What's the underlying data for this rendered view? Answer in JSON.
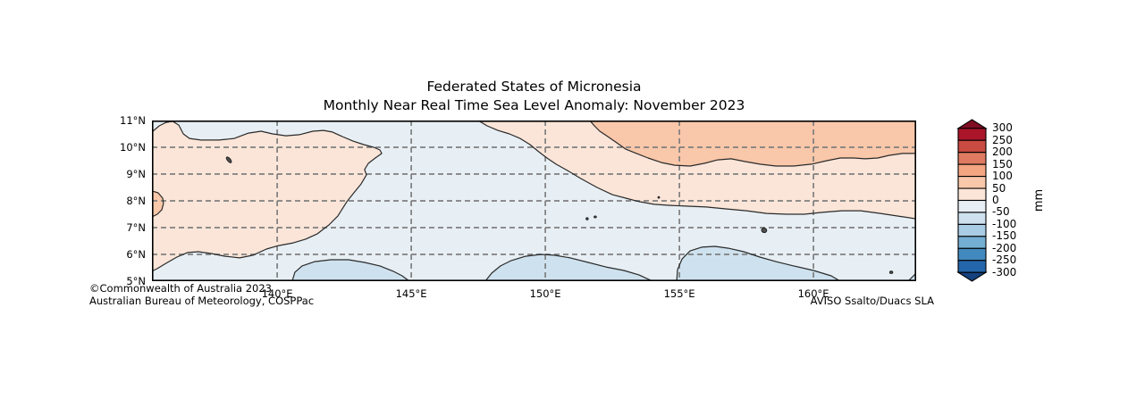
{
  "title": {
    "line1": "Federated States of Micronesia",
    "line2": "Monthly Near Real Time Sea Level Anomaly: November 2023"
  },
  "footer": {
    "copyright": "©Commonwealth of Australia 2023",
    "agency": "Australian Bureau of Meteorology, COSPPac",
    "source": "AVISO Ssalto/Duacs SLA"
  },
  "chart_data": {
    "type": "heatmap",
    "subtype": "filled-contour-sea-level-anomaly-map",
    "title": "Federated States of Micronesia — Monthly Near Real Time Sea Level Anomaly: November 2023",
    "units": "mm",
    "x_axis": {
      "range": [
        135.33,
        163.83
      ],
      "tick_values": [
        140,
        145,
        150,
        155,
        160
      ],
      "tick_labels": [
        "140°E",
        "145°E",
        "150°E",
        "155°E",
        "160°E"
      ]
    },
    "y_axis": {
      "range": [
        5,
        11
      ],
      "tick_values": [
        11,
        10,
        9,
        8,
        7,
        6,
        5
      ],
      "tick_labels": [
        "11°N",
        "10°N",
        "9°N",
        "8°N",
        "7°N",
        "6°N",
        "5°N"
      ]
    },
    "grid": {
      "dashed": true,
      "color": "#7f7f7f",
      "lat_lines": [
        10,
        9,
        8,
        7,
        6
      ],
      "lon_lines": [
        140,
        145,
        150,
        155,
        160
      ]
    },
    "background_anomaly_mm": "-50 to 0",
    "map_fill": {
      "m50_100": "#f9c7a9",
      "m0_50": "#fbe5d8",
      "mneg50_0": "#e7eff4",
      "mneg100_neg50": "#cee1ee"
    },
    "contour_color": "#2a2a2a",
    "regions": [
      {
        "name": "west-positive-anomaly",
        "anomaly_mm": "0 to 50",
        "color_key": "m0_50",
        "points": [
          [
            135.33,
            10.57
          ],
          [
            135.6,
            10.8
          ],
          [
            135.86,
            10.93
          ],
          [
            136.1,
            10.97
          ],
          [
            136.33,
            10.83
          ],
          [
            136.5,
            10.5
          ],
          [
            136.73,
            10.33
          ],
          [
            137.16,
            10.27
          ],
          [
            137.83,
            10.27
          ],
          [
            138.4,
            10.33
          ],
          [
            138.93,
            10.53
          ],
          [
            139.4,
            10.6
          ],
          [
            139.83,
            10.5
          ],
          [
            140.33,
            10.43
          ],
          [
            140.83,
            10.47
          ],
          [
            141.33,
            10.6
          ],
          [
            141.73,
            10.63
          ],
          [
            142.06,
            10.57
          ],
          [
            142.43,
            10.4
          ],
          [
            142.83,
            10.23
          ],
          [
            143.23,
            10.1
          ],
          [
            143.6,
            10.0
          ],
          [
            143.83,
            9.9
          ],
          [
            143.9,
            9.77
          ],
          [
            143.66,
            9.6
          ],
          [
            143.4,
            9.4
          ],
          [
            143.26,
            9.17
          ],
          [
            143.33,
            8.97
          ],
          [
            143.13,
            8.63
          ],
          [
            142.86,
            8.3
          ],
          [
            142.6,
            7.97
          ],
          [
            142.26,
            7.43
          ],
          [
            141.93,
            7.1
          ],
          [
            141.5,
            6.77
          ],
          [
            141.06,
            6.57
          ],
          [
            140.6,
            6.43
          ],
          [
            140.06,
            6.33
          ],
          [
            139.6,
            6.2
          ],
          [
            139.1,
            5.97
          ],
          [
            138.6,
            5.87
          ],
          [
            138.06,
            5.93
          ],
          [
            137.56,
            6.03
          ],
          [
            137.06,
            6.1
          ],
          [
            136.66,
            6.07
          ],
          [
            136.26,
            5.9
          ],
          [
            135.86,
            5.67
          ],
          [
            135.53,
            5.47
          ],
          [
            135.33,
            5.37
          ]
        ],
        "close_extra": []
      },
      {
        "name": "east-positive-band",
        "anomaly_mm": "0 to 50",
        "color_key": "m0_50",
        "points": [
          [
            147.5,
            11.0
          ],
          [
            147.83,
            10.8
          ],
          [
            148.23,
            10.63
          ],
          [
            148.66,
            10.5
          ],
          [
            149.06,
            10.33
          ],
          [
            149.43,
            10.1
          ],
          [
            149.76,
            9.83
          ],
          [
            150.06,
            9.6
          ],
          [
            150.4,
            9.37
          ],
          [
            150.83,
            9.13
          ],
          [
            151.33,
            8.83
          ],
          [
            151.93,
            8.5
          ],
          [
            152.5,
            8.23
          ],
          [
            153.0,
            8.1
          ],
          [
            153.5,
            7.97
          ],
          [
            154.06,
            7.87
          ],
          [
            154.66,
            7.83
          ],
          [
            155.33,
            7.8
          ],
          [
            156.0,
            7.77
          ],
          [
            156.73,
            7.7
          ],
          [
            157.5,
            7.63
          ],
          [
            158.26,
            7.53
          ],
          [
            159.0,
            7.5
          ],
          [
            159.66,
            7.5
          ],
          [
            160.33,
            7.57
          ],
          [
            161.06,
            7.63
          ],
          [
            161.76,
            7.63
          ],
          [
            162.5,
            7.53
          ],
          [
            163.16,
            7.43
          ],
          [
            163.83,
            7.33
          ]
        ],
        "close_extra": [
          [
            163.83,
            11.0
          ]
        ]
      },
      {
        "name": "northeast-positive-anomaly",
        "anomaly_mm": "50 to 100",
        "color_key": "m50_100",
        "points": [
          [
            151.66,
            11.0
          ],
          [
            151.83,
            10.8
          ],
          [
            152.03,
            10.6
          ],
          [
            152.33,
            10.4
          ],
          [
            152.66,
            10.17
          ],
          [
            153.0,
            9.93
          ],
          [
            153.4,
            9.77
          ],
          [
            153.83,
            9.6
          ],
          [
            154.33,
            9.43
          ],
          [
            154.83,
            9.33
          ],
          [
            155.4,
            9.3
          ],
          [
            155.93,
            9.4
          ],
          [
            156.43,
            9.53
          ],
          [
            156.93,
            9.57
          ],
          [
            157.43,
            9.47
          ],
          [
            158.0,
            9.37
          ],
          [
            158.6,
            9.3
          ],
          [
            159.26,
            9.3
          ],
          [
            159.93,
            9.37
          ],
          [
            160.5,
            9.5
          ],
          [
            161.0,
            9.6
          ],
          [
            161.5,
            9.6
          ],
          [
            161.93,
            9.57
          ],
          [
            162.4,
            9.6
          ],
          [
            162.83,
            9.7
          ],
          [
            163.33,
            9.77
          ],
          [
            163.83,
            9.77
          ]
        ],
        "close_extra": [
          [
            163.83,
            11.0
          ]
        ]
      },
      {
        "name": "west-edge-positive-blob",
        "anomaly_mm": "50 to 100",
        "color_key": "m50_100",
        "points": [
          [
            135.33,
            8.37
          ],
          [
            135.56,
            8.3
          ],
          [
            135.73,
            8.1
          ],
          [
            135.76,
            7.9
          ],
          [
            135.7,
            7.67
          ],
          [
            135.53,
            7.5
          ],
          [
            135.33,
            7.4
          ]
        ],
        "close_extra": []
      },
      {
        "name": "south-negative-patch-west",
        "anomaly_mm": "-100 to -50",
        "color_key": "mneg100_neg50",
        "points": [
          [
            140.56,
            5.0
          ],
          [
            140.66,
            5.33
          ],
          [
            140.93,
            5.57
          ],
          [
            141.4,
            5.73
          ],
          [
            142.0,
            5.8
          ],
          [
            142.66,
            5.8
          ],
          [
            143.26,
            5.7
          ],
          [
            143.83,
            5.57
          ],
          [
            144.33,
            5.37
          ],
          [
            144.66,
            5.2
          ],
          [
            144.93,
            5.0
          ]
        ],
        "close_extra": []
      },
      {
        "name": "south-negative-patch-central",
        "anomaly_mm": "-100 to -50",
        "color_key": "mneg100_neg50",
        "points": [
          [
            147.76,
            5.0
          ],
          [
            148.0,
            5.3
          ],
          [
            148.33,
            5.57
          ],
          [
            148.73,
            5.77
          ],
          [
            149.26,
            5.93
          ],
          [
            149.83,
            6.0
          ],
          [
            150.33,
            5.97
          ],
          [
            150.93,
            5.87
          ],
          [
            151.6,
            5.7
          ],
          [
            152.26,
            5.53
          ],
          [
            152.93,
            5.4
          ],
          [
            153.5,
            5.23
          ],
          [
            154.0,
            5.0
          ]
        ],
        "close_extra": []
      },
      {
        "name": "south-negative-patch-east",
        "anomaly_mm": "-100 to -50",
        "color_key": "mneg100_neg50",
        "points": [
          [
            154.9,
            5.0
          ],
          [
            154.93,
            5.43
          ],
          [
            155.1,
            5.83
          ],
          [
            155.4,
            6.13
          ],
          [
            155.83,
            6.27
          ],
          [
            156.33,
            6.3
          ],
          [
            156.83,
            6.23
          ],
          [
            157.4,
            6.1
          ],
          [
            158.0,
            5.9
          ],
          [
            158.6,
            5.73
          ],
          [
            159.26,
            5.57
          ],
          [
            160.0,
            5.4
          ],
          [
            160.66,
            5.2
          ],
          [
            161.0,
            5.0
          ]
        ],
        "close_extra": []
      },
      {
        "name": "southeast-corner-negative",
        "anomaly_mm": "-100 to -50",
        "color_key": "mneg100_neg50",
        "points": [
          [
            163.53,
            5.0
          ],
          [
            163.83,
            5.3
          ],
          [
            163.83,
            5.0
          ]
        ],
        "close_extra": [],
        "stroke_until": 2
      }
    ],
    "islands": [
      {
        "lon": 138.2,
        "lat": 9.53,
        "rx": 1.8,
        "ry": 4.0,
        "rot": -40
      },
      {
        "lon": 151.56,
        "lat": 7.33,
        "rx": 1.3,
        "ry": 1.3,
        "rot": 0
      },
      {
        "lon": 151.86,
        "lat": 7.4,
        "rx": 1.4,
        "ry": 1.1,
        "rot": 0
      },
      {
        "lon": 154.23,
        "lat": 8.13,
        "rx": 1.0,
        "ry": 1.0,
        "rot": 0
      },
      {
        "lon": 158.16,
        "lat": 6.9,
        "rx": 3.0,
        "ry": 2.6,
        "rot": 20
      },
      {
        "lon": 162.9,
        "lat": 5.33,
        "rx": 1.8,
        "ry": 1.4,
        "rot": 0
      }
    ],
    "colorbar": {
      "label": "mm",
      "levels": [
        300,
        250,
        200,
        150,
        100,
        50,
        0,
        -50,
        -100,
        -150,
        -200,
        -250,
        -300
      ],
      "tick_labels": [
        "300",
        "250",
        "200",
        "150",
        "100",
        "50",
        "0",
        "-50",
        "-100",
        "-150",
        "-200",
        "-250",
        "-300"
      ],
      "segment_colors_top_to_bottom": [
        "#ab1529",
        "#ca4b42",
        "#de7b60",
        "#f4a582",
        "#f9c7a9",
        "#fbe5d8",
        "#e7eff4",
        "#cee1ee",
        "#a9cde4",
        "#74afd3",
        "#4189be",
        "#2466ab"
      ],
      "extend_over_color": "#7f0d23",
      "extend_under_color": "#15427c"
    }
  }
}
